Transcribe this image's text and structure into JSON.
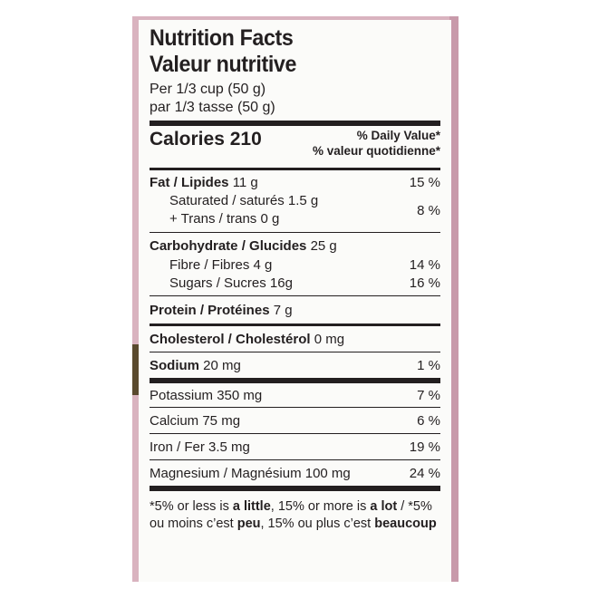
{
  "header": {
    "title_en": "Nutrition Facts",
    "title_fr": "Valeur nutritive",
    "serving_en": "Per 1/3 cup (50 g)",
    "serving_fr": "par 1/3 tasse (50 g)"
  },
  "calories": {
    "label": "Calories 210",
    "dv_en": "% Daily Value*",
    "dv_fr": "% valeur quotidienne*"
  },
  "fat": {
    "label": "Fat / Lipides",
    "amount": "11 g",
    "pct": "15 %",
    "saturated": "Saturated / saturés 1.5 g",
    "trans": "+ Trans / trans 0 g",
    "sat_trans_pct": "8 %"
  },
  "carbohydrate": {
    "label": "Carbohydrate / Glucides",
    "amount": "25 g",
    "fibre": "Fibre / Fibres 4 g",
    "fibre_pct": "14 %",
    "sugars": "Sugars / Sucres 16g",
    "sugars_pct": "16 %"
  },
  "protein": {
    "label": "Protein / Protéines",
    "amount": "7 g"
  },
  "cholesterol": {
    "label": "Cholesterol / Cholestérol",
    "amount": "0 mg"
  },
  "sodium": {
    "label": "Sodium",
    "amount": "20 mg",
    "pct": "1 %"
  },
  "minerals": [
    {
      "label": "Potassium 350 mg",
      "pct": "7 %"
    },
    {
      "label": "Calcium 75 mg",
      "pct": "6 %"
    },
    {
      "label": "Iron / Fer 3.5 mg",
      "pct": "19 %"
    },
    {
      "label": "Magnesium / Magnésium 100 mg",
      "pct": "24 %"
    }
  ],
  "footnote": {
    "p1": "*5% or less is ",
    "b1": "a little",
    "p2": ", 15% or more is ",
    "b2": "a lot",
    "p3": " / *5% ou moins c’est ",
    "b3": "peu",
    "p4": ", 15% ou plus c’est ",
    "b4": "beaucoup"
  }
}
